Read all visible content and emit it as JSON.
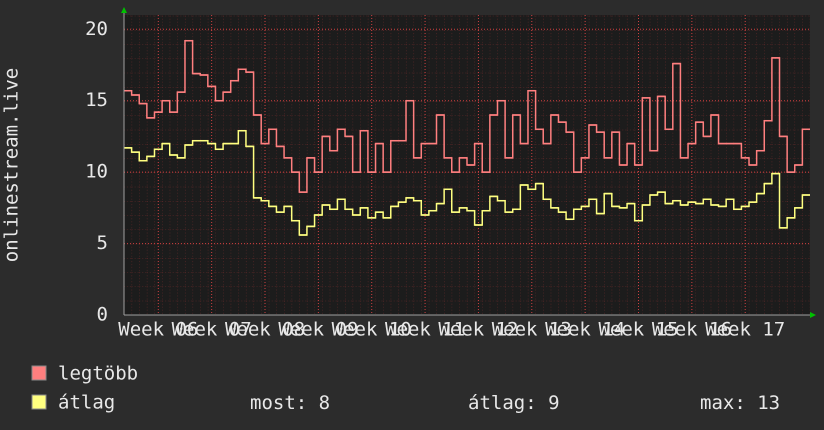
{
  "chart_data": {
    "type": "step",
    "ylabel": "onlinestream.live",
    "x": [
      0,
      1,
      2,
      3,
      4,
      5,
      6,
      7,
      8,
      9,
      10,
      11,
      12,
      13,
      14,
      15,
      16,
      17,
      18,
      19,
      20,
      21,
      22,
      23,
      24,
      25,
      26,
      27,
      28,
      29,
      30,
      31,
      32,
      33,
      34,
      35,
      36,
      37,
      38,
      39,
      40,
      41,
      42,
      43,
      44,
      45,
      46,
      47,
      48,
      49,
      50,
      51,
      52,
      53,
      54,
      55,
      56,
      57,
      58,
      59,
      60,
      61,
      62,
      63,
      64,
      65,
      66,
      67,
      68,
      69,
      70,
      71,
      72,
      73,
      74,
      75,
      76,
      77,
      78,
      79,
      80,
      81,
      82,
      83,
      84,
      85,
      86,
      87,
      88,
      89
    ],
    "series": [
      {
        "name": "legtöbb",
        "color": "#ff7f7f",
        "values": [
          15.7,
          15.4,
          14.8,
          13.8,
          14.2,
          15,
          14.2,
          15.6,
          19.2,
          16.9,
          16.8,
          16,
          15,
          15.6,
          16.4,
          17.2,
          17,
          14,
          12,
          13,
          11.8,
          11,
          10,
          8.6,
          11,
          10,
          12.5,
          11.5,
          13,
          12.5,
          10,
          12.9,
          10,
          12,
          10,
          12.2,
          12.2,
          15,
          11,
          12,
          12,
          14,
          11,
          10,
          11,
          10.5,
          12,
          10,
          14,
          15,
          11,
          14,
          12,
          15.7,
          13,
          12,
          14,
          13.5,
          12.8,
          10,
          11,
          13.3,
          12.8,
          11,
          12.8,
          10.5,
          12,
          10.5,
          15.2,
          11.5,
          15.3,
          13,
          17.6,
          11,
          12,
          13.5,
          12.5,
          14,
          12,
          12,
          12,
          11,
          10.5,
          11.5,
          13.6,
          18,
          12.5,
          10,
          10.5,
          13
        ]
      },
      {
        "name": "átlag",
        "color": "#ffff80",
        "values": [
          11.7,
          11.4,
          10.8,
          11.1,
          11.6,
          12,
          11.2,
          11,
          11.9,
          12.2,
          12.2,
          12,
          11.6,
          12,
          12,
          12.9,
          11.8,
          8.2,
          8,
          7.6,
          7.2,
          7.6,
          6.6,
          5.6,
          6.2,
          7,
          7.7,
          7.4,
          8.1,
          7.4,
          7,
          7.5,
          6.8,
          7.2,
          6.8,
          7.6,
          7.9,
          8.2,
          8,
          7,
          7.3,
          7.8,
          8.8,
          7.2,
          7.5,
          7.3,
          6.3,
          7.3,
          8.3,
          8,
          7.2,
          7.4,
          9.1,
          8.8,
          9.2,
          8.1,
          7.5,
          7.2,
          6.7,
          7.4,
          7.6,
          8.1,
          7.1,
          8.5,
          7.6,
          7.5,
          7.8,
          6.6,
          7.7,
          8.4,
          8.6,
          7.8,
          8,
          7.7,
          7.9,
          7.8,
          8.1,
          7.7,
          7.6,
          8.1,
          7.4,
          7.6,
          7.9,
          8.5,
          9.2,
          9.9,
          6.1,
          6.8,
          7.5,
          8.4
        ]
      }
    ],
    "xlim": [
      0,
      90
    ],
    "xticks": [
      {
        "value": 4.5,
        "label": "Week 06"
      },
      {
        "value": 11.5,
        "label": "Week 07"
      },
      {
        "value": 18.5,
        "label": "Week 08"
      },
      {
        "value": 25.5,
        "label": "Week 09"
      },
      {
        "value": 32.5,
        "label": "Week 10"
      },
      {
        "value": 39.5,
        "label": "Week 11"
      },
      {
        "value": 46.5,
        "label": "Week 12"
      },
      {
        "value": 53.5,
        "label": "Week 13"
      },
      {
        "value": 60.5,
        "label": "Week 14"
      },
      {
        "value": 67.5,
        "label": "Week 15"
      },
      {
        "value": 74.5,
        "label": "Week 16"
      },
      {
        "value": 81.5,
        "label": "Week 17"
      }
    ],
    "ylim": [
      0,
      21
    ],
    "yticks": [
      0,
      5,
      10,
      15,
      20
    ],
    "grid": true,
    "stats": [
      {
        "label": "most:",
        "value": 8
      },
      {
        "label": "átlag:",
        "value": 9
      },
      {
        "label": "max:",
        "value": 13
      }
    ]
  }
}
